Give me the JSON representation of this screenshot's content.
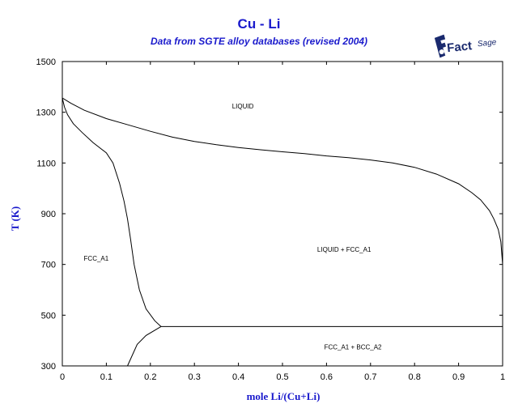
{
  "chart_data": {
    "type": "line",
    "title": "Cu - Li",
    "subtitle": "Data from SGTE alloy databases (revised 2004)",
    "xlabel": "mole Li/(Cu+Li)",
    "ylabel": "T (K)",
    "xlim": [
      0,
      1
    ],
    "ylim": [
      300,
      1500
    ],
    "x_ticks": [
      "0",
      "0.1",
      "0.2",
      "0.3",
      "0.4",
      "0.5",
      "0.6",
      "0.7",
      "0.8",
      "0.9",
      "1"
    ],
    "y_ticks": [
      "300",
      "500",
      "700",
      "900",
      "1100",
      "1300",
      "1500"
    ],
    "grid": false,
    "series": [
      {
        "points": [
          [
            0,
            1356
          ],
          [
            0.02,
            1335
          ],
          [
            0.05,
            1308
          ],
          [
            0.1,
            1275
          ],
          [
            0.15,
            1250
          ],
          [
            0.2,
            1225
          ],
          [
            0.25,
            1202
          ],
          [
            0.3,
            1185
          ],
          [
            0.35,
            1172
          ],
          [
            0.4,
            1161
          ],
          [
            0.45,
            1152
          ],
          [
            0.5,
            1144
          ],
          [
            0.55,
            1137
          ],
          [
            0.6,
            1128
          ],
          [
            0.65,
            1121
          ],
          [
            0.7,
            1112
          ],
          [
            0.75,
            1100
          ],
          [
            0.8,
            1083
          ],
          [
            0.85,
            1056
          ],
          [
            0.9,
            1018
          ],
          [
            0.93,
            983
          ],
          [
            0.95,
            955
          ],
          [
            0.97,
            912
          ],
          [
            0.98,
            880
          ],
          [
            0.99,
            838
          ],
          [
            0.996,
            790
          ],
          [
            1.0,
            700
          ]
        ]
      },
      {
        "points": [
          [
            0,
            1356
          ],
          [
            0.005,
            1320
          ],
          [
            0.012,
            1290
          ],
          [
            0.025,
            1255
          ],
          [
            0.045,
            1220
          ],
          [
            0.07,
            1180
          ],
          [
            0.1,
            1140
          ],
          [
            0.115,
            1100
          ],
          [
            0.13,
            1020
          ],
          [
            0.14,
            950
          ],
          [
            0.148,
            880
          ],
          [
            0.155,
            800
          ],
          [
            0.163,
            700
          ],
          [
            0.175,
            600
          ],
          [
            0.19,
            525
          ],
          [
            0.21,
            478
          ],
          [
            0.224,
            455
          ]
        ]
      },
      {
        "points": [
          [
            0.224,
            455
          ],
          [
            0.19,
            420
          ],
          [
            0.17,
            385
          ],
          [
            0.148,
            300
          ]
        ]
      },
      {
        "points": [
          [
            0.224,
            455
          ],
          [
            1.0,
            455
          ]
        ]
      }
    ],
    "annotations": [
      {
        "text": "LIQUID",
        "x": 0.41,
        "y": 1315
      },
      {
        "text": "LIQUID + FCC_A1",
        "x": 0.64,
        "y": 750
      },
      {
        "text": "FCC_A1",
        "x": 0.077,
        "y": 715
      },
      {
        "text": "FCC_A1 + BCC_A2",
        "x": 0.66,
        "y": 365
      }
    ]
  },
  "logo": {
    "name": "factsage-logo",
    "color": "#1a2a6e"
  }
}
